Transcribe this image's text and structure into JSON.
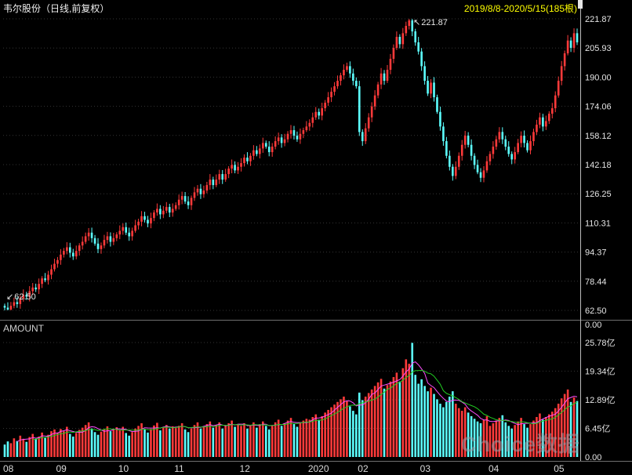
{
  "header": {
    "title": "韦尔股份（日线,前复权）",
    "date_range": "2019/8/8-2020/5/15(185根)"
  },
  "annotations": {
    "high": {
      "icon": "↖",
      "label": "221.87"
    },
    "low": {
      "icon": "↙",
      "label": "62.50"
    }
  },
  "volume_pane": {
    "label": "AMOUNT"
  },
  "watermark": "Choice数据",
  "colors": {
    "up": "#ff3a3a",
    "down": "#5cffff",
    "grid": "#343434",
    "axis_text": "#e6e6e6",
    "x_text": "#d9d9d9",
    "divider": "#6f6f6f",
    "axis_line": "#bbbbbb",
    "vol_ma5": "#ff4dff",
    "vol_ma10": "#22cc22"
  },
  "axes": {
    "price_labels": [
      "221.87",
      "205.93",
      "190.00",
      "174.06",
      "158.12",
      "142.18",
      "126.25",
      "110.31",
      "94.37",
      "78.44",
      "62.50"
    ],
    "pane_divider_label": "0.00",
    "volume_labels": [
      "25.78亿",
      "19.34亿",
      "12.89亿",
      "6.45亿",
      "0.00"
    ],
    "volume_label_values": [
      25.78,
      19.34,
      12.89,
      6.45,
      0
    ],
    "x_labels": [
      "08",
      "09",
      "10",
      "11",
      "12",
      "2020",
      "02",
      "03",
      "04",
      "05"
    ]
  },
  "chart_data": {
    "type": "candlestick+volume",
    "symbol": "韦尔股份",
    "period": "日线",
    "adjust": "前复权",
    "range": "2019/8/8-2020/5/15",
    "bars": 185,
    "price_axis": [
      221.87,
      62.5
    ],
    "volume_axis_max_yi": 25.78,
    "first_open": 65,
    "x_month_ticks": {
      "08": 0,
      "09": 17,
      "10": 37,
      "11": 55,
      "12": 76,
      "2020": 98,
      "02": 114,
      "03": 134,
      "04": 156,
      "05": 177
    },
    "closes": [
      64,
      63,
      65,
      67,
      66,
      69,
      71,
      70,
      73,
      75,
      74,
      77,
      80,
      79,
      82,
      85,
      88,
      90,
      93,
      95,
      97,
      94,
      92,
      95,
      98,
      100,
      103,
      105,
      102,
      99,
      96,
      98,
      101,
      103,
      100,
      102,
      104,
      106,
      108,
      105,
      103,
      106,
      109,
      111,
      114,
      112,
      110,
      113,
      116,
      118,
      115,
      117,
      119,
      116,
      118,
      120,
      123,
      125,
      122,
      120,
      124,
      127,
      129,
      126,
      128,
      131,
      134,
      131,
      134,
      137,
      134,
      137,
      140,
      142,
      139,
      141,
      143,
      146,
      144,
      147,
      150,
      148,
      151,
      154,
      152,
      149,
      152,
      155,
      157,
      154,
      156,
      159,
      161,
      158,
      156,
      159,
      161,
      163,
      165,
      168,
      171,
      169,
      173,
      176,
      179,
      182,
      185,
      188,
      191,
      194,
      196,
      192,
      188,
      185,
      160,
      155,
      162,
      168,
      174,
      180,
      186,
      192,
      188,
      194,
      200,
      206,
      212,
      208,
      214,
      218,
      221,
      215,
      209,
      204,
      196,
      188,
      181,
      187,
      179,
      171,
      163,
      155,
      147,
      141,
      136,
      141,
      147,
      153,
      158,
      153,
      147,
      142,
      138,
      135,
      139,
      144,
      148,
      152,
      156,
      160,
      156,
      152,
      148,
      145,
      149,
      154,
      158,
      154,
      150,
      155,
      160,
      164,
      168,
      163,
      166,
      170,
      173,
      180,
      188,
      196,
      203,
      210,
      206,
      214,
      209
    ],
    "volumes_yi": [
      2.8,
      3.5,
      3.1,
      4.2,
      3.6,
      4.8,
      4.1,
      3.4,
      4.5,
      5.2,
      4.0,
      4.6,
      5.5,
      4.3,
      5.0,
      5.8,
      6.2,
      5.5,
      6.3,
      5.8,
      6.8,
      5.2,
      4.6,
      5.4,
      6.1,
      6.6,
      7.2,
      7.8,
      6.4,
      5.6,
      5.0,
      5.7,
      6.3,
      6.9,
      5.8,
      6.2,
      6.7,
      6.0,
      6.8,
      5.4,
      4.8,
      5.6,
      6.4,
      7.0,
      7.6,
      6.2,
      5.5,
      6.3,
      7.1,
      7.7,
      6.0,
      6.6,
      7.2,
      6.4,
      6.9,
      6.5,
      7.0,
      7.6,
      6.2,
      5.6,
      6.4,
      7.2,
      7.8,
      6.4,
      6.8,
      7.4,
      8.0,
      6.6,
      7.2,
      7.8,
      6.4,
      7.0,
      7.6,
      8.2,
      6.8,
      7.4,
      7.0,
      7.6,
      6.4,
      7.2,
      7.8,
      6.6,
      7.4,
      8.0,
      7.0,
      6.2,
      7.0,
      7.8,
      8.4,
      7.0,
      7.6,
      8.2,
      8.8,
      7.4,
      6.8,
      7.6,
      8.2,
      8.6,
      8.4,
      9.0,
      9.6,
      8.4,
      9.2,
      10.0,
      10.6,
      11.2,
      11.8,
      12.4,
      13.0,
      13.6,
      12.6,
      11.4,
      10.4,
      9.6,
      14.5,
      12.8,
      13.6,
      14.4,
      15.2,
      16.0,
      16.8,
      17.6,
      15.4,
      16.2,
      17.0,
      18.0,
      19.0,
      17.0,
      20.0,
      22.0,
      21.0,
      25.7,
      18.5,
      16.5,
      17.5,
      16.0,
      14.8,
      15.6,
      14.2,
      13.0,
      12.0,
      11.2,
      12.4,
      13.6,
      14.8,
      12.0,
      11.0,
      10.4,
      11.2,
      10.0,
      9.2,
      8.6,
      8.0,
      7.6,
      8.4,
      9.2,
      7.0,
      7.6,
      8.2,
      8.8,
      9.4,
      7.8,
      7.0,
      6.4,
      7.2,
      8.0,
      8.8,
      7.4,
      6.6,
      7.4,
      8.2,
      9.0,
      9.8,
      8.4,
      9.0,
      9.6,
      10.2,
      11.0,
      12.0,
      13.2,
      14.2,
      15.2,
      12.4,
      13.4,
      12.6
    ]
  }
}
